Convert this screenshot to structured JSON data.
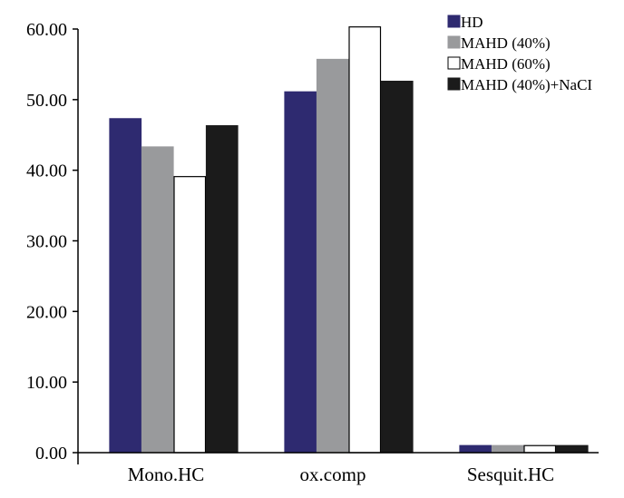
{
  "chart_data": {
    "type": "bar",
    "categories": [
      "Mono.HC",
      "ox.comp",
      "Sesquit.HC"
    ],
    "series": [
      {
        "name": "HD",
        "color": "#2e2a70",
        "stroke": "#2e2a70",
        "values": [
          47.3,
          51.1,
          1.0
        ]
      },
      {
        "name": "MAHD (40%)",
        "color": "#999a9c",
        "stroke": "#999a9c",
        "values": [
          43.3,
          55.7,
          1.0
        ]
      },
      {
        "name": "MAHD (60%)",
        "color": "#ffffff",
        "stroke": "#000000",
        "values": [
          39.1,
          60.3,
          1.0
        ]
      },
      {
        "name": "MAHD (40%)+NaCI",
        "color": "#1b1b1b",
        "stroke": "#1b1b1b",
        "values": [
          46.3,
          52.6,
          1.0
        ]
      }
    ],
    "yticks": [
      "0.00",
      "10.00",
      "20.00",
      "30.00",
      "40.00",
      "50.00",
      "60.00"
    ],
    "ylim": [
      0,
      60
    ],
    "title": "",
    "xlabel": "",
    "ylabel": "",
    "grid": false,
    "legend_position": "top-right"
  }
}
